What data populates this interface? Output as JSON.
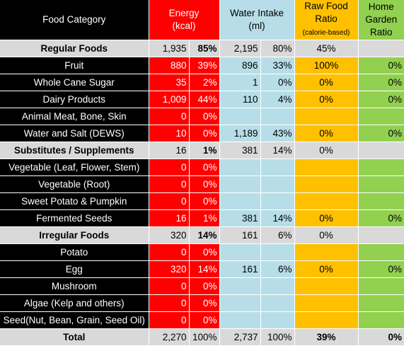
{
  "header": {
    "category": "Food Category",
    "energy_line1": "Energy",
    "energy_line2": "(kcal)",
    "water_line1": "Water Intake",
    "water_line2": "(ml)",
    "raw_line1": "Raw Food",
    "raw_line2": "Ratio",
    "raw_line3": "(calorie-based)",
    "garden_line1": "Home",
    "garden_line2": "Garden",
    "garden_line3": "Ratio"
  },
  "rows": [
    {
      "type": "group",
      "name": "Regular Foods",
      "energy": "1,935",
      "energy_pct": "85%",
      "water": "2,195",
      "water_pct": "80%",
      "raw": "45%",
      "garden": ""
    },
    {
      "type": "item",
      "name": "Fruit",
      "energy": "880",
      "energy_pct": "39%",
      "water": "896",
      "water_pct": "33%",
      "raw": "100%",
      "garden": "0%"
    },
    {
      "type": "item",
      "name": "Whole Cane Sugar",
      "energy": "35",
      "energy_pct": "2%",
      "water": "1",
      "water_pct": "0%",
      "raw": "0%",
      "garden": "0%"
    },
    {
      "type": "item",
      "name": "Dairy Products",
      "energy": "1,009",
      "energy_pct": "44%",
      "water": "110",
      "water_pct": "4%",
      "raw": "0%",
      "garden": "0%"
    },
    {
      "type": "item",
      "name": "Animal Meat, Bone, Skin",
      "energy": "0",
      "energy_pct": "0%",
      "water": "",
      "water_pct": "",
      "raw": "",
      "garden": ""
    },
    {
      "type": "item",
      "name": "Water and Salt (DEWS)",
      "energy": "10",
      "energy_pct": "0%",
      "water": "1,189",
      "water_pct": "43%",
      "raw": "0%",
      "garden": "0%"
    },
    {
      "type": "group",
      "name": "Substitutes / Supplements",
      "energy": "16",
      "energy_pct": "1%",
      "water": "381",
      "water_pct": "14%",
      "raw": "0%",
      "garden": ""
    },
    {
      "type": "item",
      "name": "Vegetable (Leaf, Flower, Stem)",
      "energy": "0",
      "energy_pct": "0%",
      "water": "",
      "water_pct": "",
      "raw": "",
      "garden": ""
    },
    {
      "type": "item",
      "name": "Vegetable (Root)",
      "energy": "0",
      "energy_pct": "0%",
      "water": "",
      "water_pct": "",
      "raw": "",
      "garden": ""
    },
    {
      "type": "item",
      "name": "Sweet Potato & Pumpkin",
      "energy": "0",
      "energy_pct": "0%",
      "water": "",
      "water_pct": "",
      "raw": "",
      "garden": ""
    },
    {
      "type": "item",
      "name": "Fermented Seeds",
      "energy": "16",
      "energy_pct": "1%",
      "water": "381",
      "water_pct": "14%",
      "raw": "0%",
      "garden": "0%"
    },
    {
      "type": "group",
      "name": "Irregular Foods",
      "energy": "320",
      "energy_pct": "14%",
      "water": "161",
      "water_pct": "6%",
      "raw": "0%",
      "garden": ""
    },
    {
      "type": "item",
      "name": "Potato",
      "energy": "0",
      "energy_pct": "0%",
      "water": "",
      "water_pct": "",
      "raw": "",
      "garden": ""
    },
    {
      "type": "item",
      "name": "Egg",
      "energy": "320",
      "energy_pct": "14%",
      "water": "161",
      "water_pct": "6%",
      "raw": "0%",
      "garden": "0%"
    },
    {
      "type": "item",
      "name": "Mushroom",
      "energy": "0",
      "energy_pct": "0%",
      "water": "",
      "water_pct": "",
      "raw": "",
      "garden": ""
    },
    {
      "type": "item",
      "name": "Algae (Kelp and others)",
      "energy": "0",
      "energy_pct": "0%",
      "water": "",
      "water_pct": "",
      "raw": "",
      "garden": ""
    },
    {
      "type": "item",
      "name": "Seed(Nut, Bean, Grain, Seed Oil)",
      "energy": "0",
      "energy_pct": "0%",
      "water": "",
      "water_pct": "",
      "raw": "",
      "garden": ""
    },
    {
      "type": "total",
      "name": "Total",
      "energy": "2,270",
      "energy_pct": "100%",
      "water": "2,737",
      "water_pct": "100%",
      "raw": "39%",
      "garden": "0%"
    }
  ],
  "colors": {
    "energy": "#ff0000",
    "water": "#b7dee8",
    "raw": "#ffc000",
    "garden": "#92d050",
    "category": "#000000",
    "group": "#d9d9d9"
  }
}
